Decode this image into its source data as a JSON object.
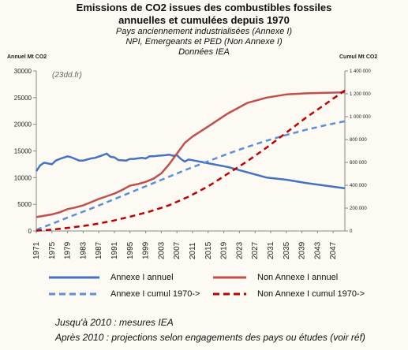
{
  "header": {
    "title_line1": "Emissions de CO2 issues des combustibles fossiles",
    "title_line2": "annuelles et cumulées depuis 1970",
    "subtitle_line1": "Pays anciennement industrialisées (Annexe I)",
    "subtitle_line2": "NPI, Emergeants et PED (Non Annexe I)",
    "subtitle_line3": "Données IEA"
  },
  "watermark": "(23dd.fr)",
  "notes": {
    "line1": "Jusqu'à 2010 : mesures IEA",
    "line2": "Après 2010  : projections selon engagements des pays ou études (voir réf)"
  },
  "colors": {
    "annexe": "#4472c4",
    "non_annexe": "#c0504d",
    "non_annexe_dash": "#c00000",
    "annexe_dash": "#5b8fd9"
  },
  "chart_data": {
    "type": "line",
    "ylabel_left": "Annuel Mt CO2",
    "ylabel_right": "Cumul Mt CO2",
    "ylim_left": [
      0,
      30000
    ],
    "ylim_right": [
      0,
      1400000
    ],
    "yticks_left": [
      "0",
      "5000",
      "10000",
      "15000",
      "20000",
      "25000",
      "30000"
    ],
    "yticks_right": [
      "0",
      "200 000",
      "400 000",
      "600 000",
      "800 000",
      "1 000 000",
      "1 200 000",
      "1 400 000"
    ],
    "xlim": [
      1971,
      2050
    ],
    "xticks": [
      "1971",
      "1975",
      "1979",
      "1983",
      "1987",
      "1991",
      "1995",
      "1999",
      "2003",
      "2007",
      "2011",
      "2015",
      "2019",
      "2023",
      "2027",
      "2031",
      "2035",
      "2039",
      "2043",
      "2047"
    ],
    "grid": false,
    "legend": "bottom",
    "series": [
      {
        "name": "Annexe I annuel",
        "axis": "left",
        "style": "solid",
        "x": [
          1971,
          1972,
          1973,
          1975,
          1976,
          1977,
          1979,
          1980,
          1982,
          1983,
          1985,
          1986,
          1988,
          1989,
          1990,
          1991,
          1992,
          1994,
          1995,
          1996,
          1998,
          1999,
          2000,
          2001,
          2002,
          2004,
          2005,
          2006,
          2007,
          2008,
          2009,
          2010,
          2015,
          2020,
          2025,
          2030,
          2035,
          2040,
          2045,
          2050
        ],
        "y": [
          11200,
          12300,
          12800,
          12500,
          13200,
          13500,
          14000,
          13800,
          13200,
          13200,
          13600,
          13700,
          14200,
          14500,
          13900,
          13800,
          13300,
          13200,
          13500,
          13500,
          13700,
          13600,
          14000,
          14000,
          14100,
          14200,
          14300,
          14100,
          14200,
          13500,
          13000,
          13400,
          12700,
          12000,
          11000,
          10000,
          9600,
          9000,
          8500,
          8000
        ]
      },
      {
        "name": "Non Annexe I annuel",
        "axis": "left",
        "style": "solid",
        "x": [
          1971,
          1975,
          1977,
          1979,
          1981,
          1983,
          1985,
          1987,
          1989,
          1991,
          1993,
          1995,
          1997,
          1999,
          2001,
          2003,
          2005,
          2007,
          2009,
          2011,
          2015,
          2020,
          2025,
          2030,
          2035,
          2040,
          2045,
          2050
        ],
        "y": [
          2600,
          3100,
          3500,
          4100,
          4400,
          4800,
          5400,
          6000,
          6500,
          7000,
          7700,
          8500,
          8800,
          9200,
          9800,
          10800,
          12500,
          14500,
          16500,
          17700,
          19600,
          22000,
          24000,
          25000,
          25600,
          25800,
          25900,
          26000
        ]
      },
      {
        "name": "Annexe I cumul 1970->",
        "axis": "right",
        "style": "dashed",
        "x": [
          1971,
          1975,
          1980,
          1985,
          1990,
          1995,
          2000,
          2005,
          2010,
          2015,
          2020,
          2025,
          2030,
          2035,
          2040,
          2045,
          2050
        ],
        "y": [
          11000,
          62000,
          130000,
          195000,
          265000,
          335000,
          405000,
          475000,
          545000,
          610000,
          675000,
          735000,
          790000,
          840000,
          885000,
          925000,
          960000
        ]
      },
      {
        "name": "Non Annexe I cumul 1970->",
        "axis": "right",
        "style": "dashed",
        "x": [
          1971,
          1975,
          1980,
          1985,
          1990,
          1995,
          2000,
          2005,
          2010,
          2015,
          2020,
          2025,
          2030,
          2035,
          2040,
          2045,
          2050
        ],
        "y": [
          2600,
          12000,
          30000,
          53000,
          85000,
          125000,
          170000,
          225000,
          300000,
          390000,
          500000,
          610000,
          730000,
          860000,
          990000,
          1110000,
          1230000
        ]
      }
    ]
  }
}
